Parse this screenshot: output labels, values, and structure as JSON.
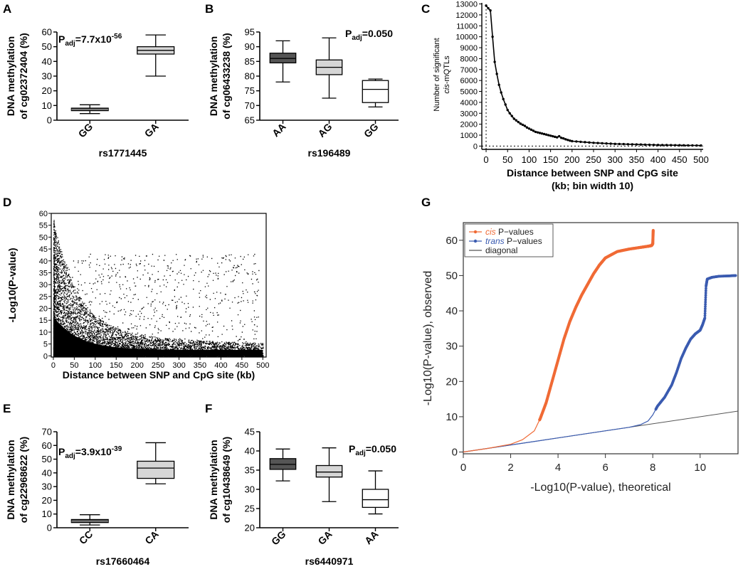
{
  "chart_data": [
    {
      "panel": "A",
      "type": "box",
      "ylabel_line1": "DNA methylation",
      "ylabel_line2": "of cg02372404 (%)",
      "xlabel": "rs1771445",
      "ylim": [
        0,
        60
      ],
      "yticks": [
        0,
        10,
        20,
        30,
        40,
        50,
        60
      ],
      "categories": [
        "GG",
        "GA"
      ],
      "boxes": [
        {
          "min": 4.5,
          "q1": 6.5,
          "median": 7.3,
          "q3": 8.2,
          "max": 10.5,
          "fill": "#404040"
        },
        {
          "min": 30,
          "q1": 45,
          "median": 47.5,
          "q3": 50,
          "max": 58,
          "fill": "#d6d6d6"
        }
      ],
      "annotation": {
        "main": "P",
        "sub": "adj",
        "text": "=7.7x10",
        "sup": "-56"
      }
    },
    {
      "panel": "B",
      "type": "box",
      "ylabel_line1": "DNA methylation",
      "ylabel_line2": "of cg06433238 (%)",
      "xlabel": "rs196489",
      "ylim": [
        65,
        95
      ],
      "yticks": [
        65,
        70,
        75,
        80,
        85,
        90,
        95
      ],
      "categories": [
        "AA",
        "AG",
        "GG"
      ],
      "boxes": [
        {
          "min": 78,
          "q1": 84.5,
          "median": 86,
          "q3": 87.8,
          "max": 92,
          "fill": "#555555"
        },
        {
          "min": 72.5,
          "q1": 80.5,
          "median": 83,
          "q3": 85.5,
          "max": 93,
          "fill": "#d6d6d6"
        },
        {
          "min": 69.5,
          "q1": 71,
          "median": 75.5,
          "q3": 78.5,
          "max": 79,
          "fill": "#ffffff"
        }
      ],
      "annotation": {
        "main": "P",
        "sub": "adj",
        "text": "=0.050",
        "sup": ""
      }
    },
    {
      "panel": "C",
      "type": "line",
      "ylabel_line1": "Number of significant",
      "ylabel_line2_italic": "cis",
      "ylabel_line2": "-mQTLs",
      "xlabel_line1": "Distance between SNP and CpG site",
      "xlabel_line2": "(kb; bin width 10)",
      "xlim": [
        -10,
        505
      ],
      "ylim": [
        -300,
        13100
      ],
      "xticks": [
        0,
        50,
        100,
        150,
        200,
        250,
        300,
        350,
        400,
        450,
        500
      ],
      "yticks": [
        0,
        1000,
        2000,
        3000,
        4000,
        5000,
        6000,
        7000,
        8000,
        9000,
        10000,
        11000,
        12000,
        13000
      ],
      "x": [
        0,
        5,
        10,
        15,
        20,
        25,
        30,
        35,
        40,
        45,
        50,
        55,
        60,
        65,
        70,
        75,
        80,
        85,
        90,
        95,
        100,
        105,
        110,
        115,
        120,
        125,
        130,
        135,
        140,
        145,
        150,
        155,
        160,
        165,
        170,
        175,
        180,
        185,
        190,
        195,
        200,
        210,
        220,
        230,
        240,
        250,
        260,
        270,
        280,
        290,
        300,
        310,
        320,
        330,
        340,
        350,
        360,
        370,
        380,
        390,
        400,
        410,
        420,
        430,
        440,
        450,
        460,
        470,
        480,
        490,
        500
      ],
      "y": [
        12850,
        12600,
        12400,
        10000,
        7700,
        6600,
        5600,
        4900,
        4300,
        3800,
        3300,
        3000,
        2750,
        2500,
        2350,
        2200,
        2050,
        1950,
        1850,
        1700,
        1600,
        1500,
        1400,
        1300,
        1250,
        1200,
        1150,
        1100,
        1050,
        1000,
        950,
        900,
        850,
        800,
        900,
        750,
        700,
        620,
        560,
        500,
        450,
        420,
        390,
        360,
        330,
        300,
        280,
        260,
        240,
        220,
        200,
        190,
        180,
        170,
        160,
        150,
        140,
        130,
        120,
        110,
        100,
        95,
        90,
        85,
        80,
        75,
        70,
        65,
        60,
        55,
        50
      ]
    },
    {
      "panel": "D",
      "type": "scatter",
      "ylabel": "-Log10(P-value)",
      "xlabel": "Distance between SNP and CpG site (kb)",
      "xlim": [
        -5,
        508
      ],
      "ylim": [
        -0.5,
        60
      ],
      "xticks": [
        0,
        50,
        100,
        150,
        200,
        250,
        300,
        350,
        400,
        450,
        500
      ],
      "yticks": [
        0,
        5,
        10,
        15,
        20,
        25,
        30,
        35,
        40,
        45,
        50,
        55,
        60
      ]
    },
    {
      "panel": "E",
      "type": "box",
      "ylabel_line1": "DNA methylation",
      "ylabel_line2": "of cg22968622 (%)",
      "xlabel": "rs17660464",
      "ylim": [
        0,
        70
      ],
      "yticks": [
        0,
        10,
        20,
        30,
        40,
        50,
        60,
        70
      ],
      "categories": [
        "CC",
        "CA"
      ],
      "boxes": [
        {
          "min": 2,
          "q1": 3.8,
          "median": 4.8,
          "q3": 6,
          "max": 9.5,
          "fill": "#404040"
        },
        {
          "min": 32,
          "q1": 36,
          "median": 43.5,
          "q3": 48.5,
          "max": 62,
          "fill": "#d6d6d6"
        }
      ],
      "annotation": {
        "main": "P",
        "sub": "adj",
        "text": "=3.9x10",
        "sup": "-39"
      }
    },
    {
      "panel": "F",
      "type": "box",
      "ylabel_line1": "DNA methylation",
      "ylabel_line2": "of cg10438649 (%)",
      "xlabel": "rs6440971",
      "ylim": [
        20,
        45
      ],
      "yticks": [
        20,
        25,
        30,
        35,
        40,
        45
      ],
      "categories": [
        "GG",
        "GA",
        "AA"
      ],
      "boxes": [
        {
          "min": 32.2,
          "q1": 35.2,
          "median": 36.5,
          "q3": 38,
          "max": 40.5,
          "fill": "#555555"
        },
        {
          "min": 26.8,
          "q1": 33.2,
          "median": 34.5,
          "q3": 36.2,
          "max": 40.8,
          "fill": "#d6d6d6"
        },
        {
          "min": 23.6,
          "q1": 25.3,
          "median": 27.3,
          "q3": 30,
          "max": 34.8,
          "fill": "#ffffff"
        }
      ],
      "annotation": {
        "main": "P",
        "sub": "adj",
        "text": "=0.050",
        "sup": ""
      }
    },
    {
      "panel": "G",
      "type": "line",
      "ylabel": "-Log10(P-value), observed",
      "xlabel": "-Log10(P-value), theoretical",
      "xlim": [
        0,
        11.6
      ],
      "ylim": [
        -0.5,
        65
      ],
      "xticks": [
        0,
        2,
        4,
        6,
        8,
        10
      ],
      "yticks": [
        0,
        10,
        20,
        30,
        40,
        50,
        60
      ],
      "legend_position": "top-left",
      "series": [
        {
          "name_italic": "cis",
          "name": " P−values",
          "color": "#f06a35",
          "x": [
            0,
            1,
            2,
            2.5,
            3,
            3.25,
            3.5,
            3.75,
            4,
            4.25,
            4.5,
            4.75,
            5,
            5.25,
            5.5,
            5.75,
            6,
            6.5,
            7,
            7.5,
            7.8,
            7.95,
            8.0,
            8.02
          ],
          "y": [
            0,
            1.0,
            2.2,
            3.5,
            6.0,
            9.5,
            14,
            20,
            26,
            32,
            37,
            41,
            44.5,
            47.5,
            50.5,
            53,
            55,
            56.8,
            57.5,
            58,
            58.3,
            58.5,
            59,
            63
          ]
        },
        {
          "name_italic": "trans",
          "name": " P−values",
          "color": "#3a5bb0",
          "x": [
            0,
            2,
            4,
            6,
            7,
            7.5,
            7.8,
            8.0,
            8.2,
            8.5,
            8.8,
            9.0,
            9.2,
            9.4,
            9.6,
            9.8,
            10.0,
            10.1,
            10.2,
            10.25,
            10.3,
            10.5,
            10.8,
            11.2,
            11.5
          ],
          "y": [
            0,
            2,
            4,
            6,
            7,
            7.8,
            8.8,
            10.5,
            13,
            15.5,
            19,
            22.5,
            26.5,
            29.5,
            32,
            33.5,
            34.5,
            36,
            38,
            47,
            49,
            49.5,
            49.8,
            49.9,
            50
          ]
        },
        {
          "name": "diagonal",
          "color": "#555555",
          "x": [
            0,
            11.6
          ],
          "y": [
            0,
            11.6
          ]
        }
      ]
    }
  ]
}
